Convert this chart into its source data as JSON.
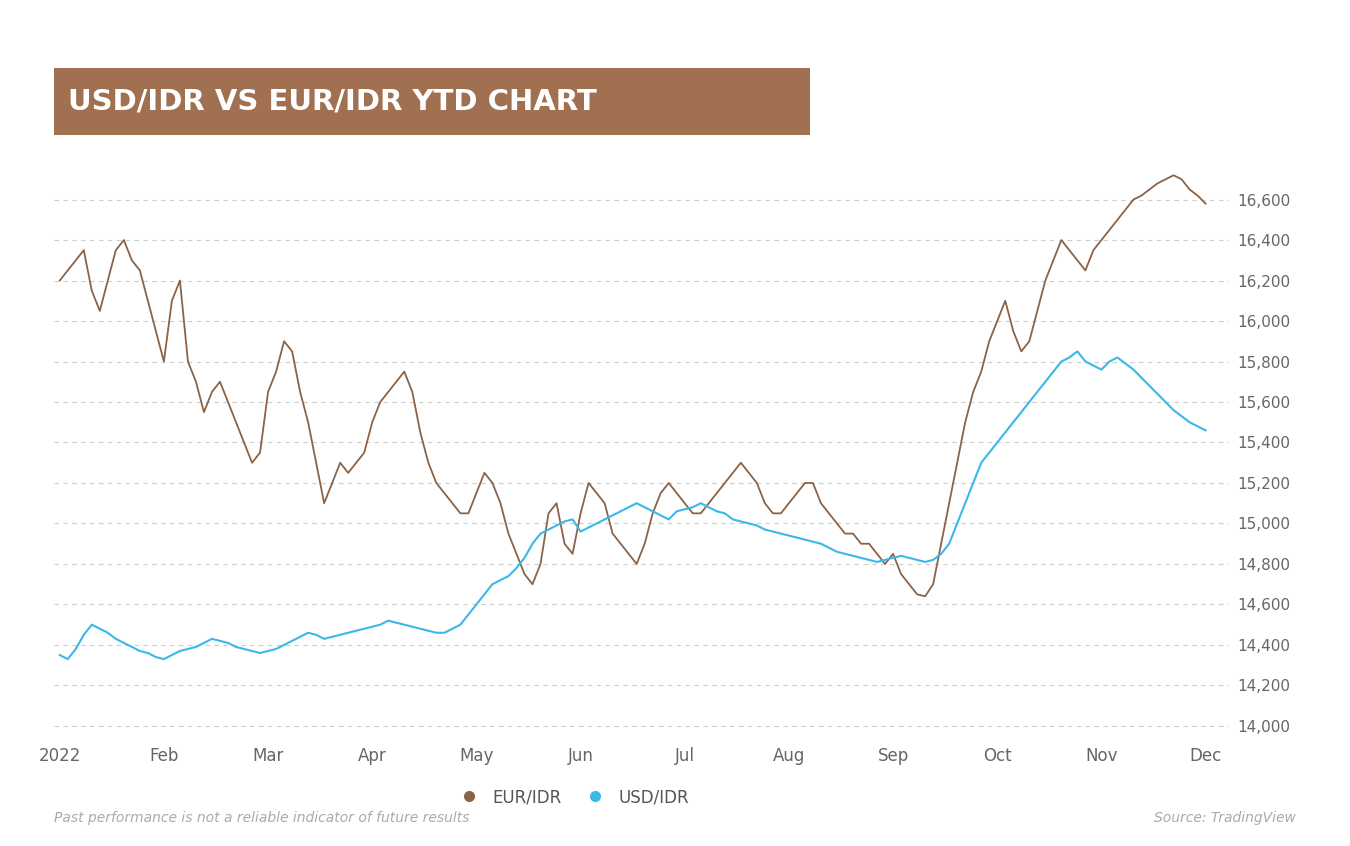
{
  "title": "USD/IDR VS EUR/IDR YTD CHART",
  "title_bg_color": "#a07050",
  "title_text_color": "#ffffff",
  "bg_color": "#ffffff",
  "grid_color": "#cccccc",
  "eur_idr_color": "#8B6347",
  "usd_idr_color": "#3ab8e8",
  "xlabel_months": [
    "2022",
    "Feb",
    "Mar",
    "Apr",
    "May",
    "Jun",
    "Jul",
    "Aug",
    "Sep",
    "Oct",
    "Nov",
    "Dec"
  ],
  "ylabel_values": [
    14000,
    14200,
    14400,
    14600,
    14800,
    15000,
    15200,
    15400,
    15600,
    15800,
    16000,
    16200,
    16400,
    16600
  ],
  "ylim": [
    13950,
    16750
  ],
  "footnote_left": "Past performance is not a reliable indicator of future results",
  "footnote_right": "Source: TradingView",
  "legend_eur": "EUR/IDR",
  "legend_usd": "USD/IDR",
  "eur_idr": [
    16200,
    16250,
    16300,
    16350,
    16150,
    16050,
    16200,
    16350,
    16400,
    16300,
    16250,
    16100,
    15950,
    15800,
    16100,
    16200,
    15800,
    15700,
    15550,
    15650,
    15700,
    15600,
    15500,
    15400,
    15300,
    15350,
    15650,
    15750,
    15900,
    15850,
    15650,
    15500,
    15300,
    15100,
    15200,
    15300,
    15250,
    15300,
    15350,
    15500,
    15600,
    15650,
    15700,
    15750,
    15650,
    15450,
    15300,
    15200,
    15150,
    15100,
    15050,
    15050,
    15150,
    15250,
    15200,
    15100,
    14950,
    14850,
    14750,
    14700,
    14800,
    15050,
    15100,
    14900,
    14850,
    15050,
    15200,
    15150,
    15100,
    14950,
    14900,
    14850,
    14800,
    14900,
    15050,
    15150,
    15200,
    15150,
    15100,
    15050,
    15050,
    15100,
    15150,
    15200,
    15250,
    15300,
    15250,
    15200,
    15100,
    15050,
    15050,
    15100,
    15150,
    15200,
    15200,
    15100,
    15050,
    15000,
    14950,
    14950,
    14900,
    14900,
    14850,
    14800,
    14850,
    14750,
    14700,
    14650,
    14640,
    14700,
    14900,
    15100,
    15300,
    15500,
    15650,
    15750,
    15900,
    16000,
    16100,
    15950,
    15850,
    15900,
    16050,
    16200,
    16300,
    16400,
    16350,
    16300,
    16250,
    16350,
    16400,
    16450,
    16500,
    16550,
    16600,
    16620,
    16650,
    16680,
    16700,
    16720,
    16700,
    16650,
    16620,
    16580
  ],
  "usd_idr": [
    14350,
    14330,
    14380,
    14450,
    14500,
    14480,
    14460,
    14430,
    14410,
    14390,
    14370,
    14360,
    14340,
    14330,
    14350,
    14370,
    14380,
    14390,
    14410,
    14430,
    14420,
    14410,
    14390,
    14380,
    14370,
    14360,
    14370,
    14380,
    14400,
    14420,
    14440,
    14460,
    14450,
    14430,
    14440,
    14450,
    14460,
    14470,
    14480,
    14490,
    14500,
    14520,
    14510,
    14500,
    14490,
    14480,
    14470,
    14460,
    14460,
    14480,
    14500,
    14550,
    14600,
    14650,
    14700,
    14720,
    14740,
    14780,
    14830,
    14900,
    14950,
    14970,
    14990,
    15010,
    15020,
    14960,
    14980,
    15000,
    15020,
    15040,
    15060,
    15080,
    15100,
    15080,
    15060,
    15040,
    15020,
    15060,
    15070,
    15080,
    15100,
    15080,
    15060,
    15050,
    15020,
    15010,
    15000,
    14990,
    14970,
    14960,
    14950,
    14940,
    14930,
    14920,
    14910,
    14900,
    14880,
    14860,
    14850,
    14840,
    14830,
    14820,
    14810,
    14820,
    14830,
    14840,
    14830,
    14820,
    14810,
    14820,
    14850,
    14900,
    15000,
    15100,
    15200,
    15300,
    15350,
    15400,
    15450,
    15500,
    15550,
    15600,
    15650,
    15700,
    15750,
    15800,
    15820,
    15850,
    15800,
    15780,
    15760,
    15800,
    15820,
    15790,
    15760,
    15720,
    15680,
    15640,
    15600,
    15560,
    15530,
    15500,
    15480,
    15460
  ]
}
